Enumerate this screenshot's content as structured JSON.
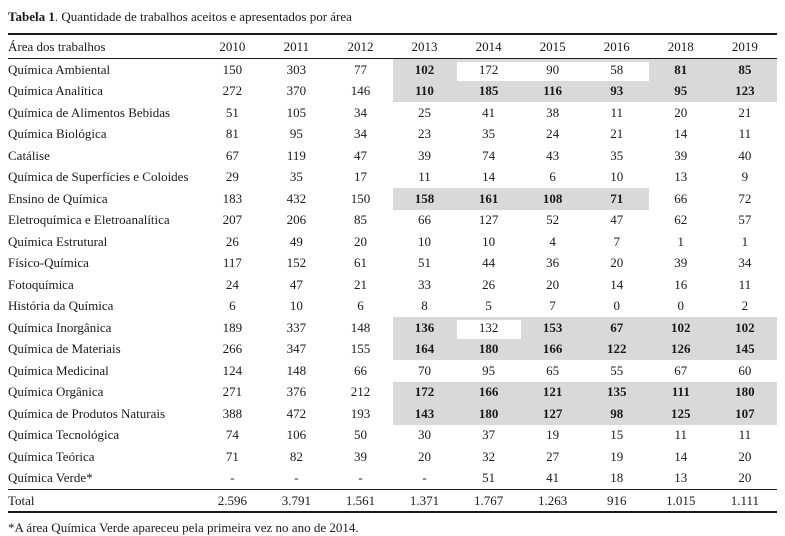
{
  "title": {
    "label": "Tabela 1",
    "rest": ". Quantidade de trabalhos aceitos e apresentados por área"
  },
  "highlight_color": "#d9d9d9",
  "table": {
    "area_header": "Área dos trabalhos",
    "year_headers": [
      "2010",
      "2011",
      "2012",
      "2013",
      "2014",
      "2015",
      "2016",
      "2018",
      "2019"
    ],
    "rows": [
      {
        "area": "Química Ambiental",
        "values": [
          "150",
          "303",
          "77",
          "102",
          "172",
          "90",
          "58",
          "81",
          "85"
        ],
        "hl": [
          3,
          7,
          8
        ],
        "cut": [
          4,
          5,
          6
        ]
      },
      {
        "area": "Química Analítica",
        "values": [
          "272",
          "370",
          "146",
          "110",
          "185",
          "116",
          "93",
          "95",
          "123"
        ],
        "hl": [
          3,
          4,
          5,
          6,
          7,
          8
        ],
        "cut": []
      },
      {
        "area": "Química de Alimentos Bebidas",
        "values": [
          "51",
          "105",
          "34",
          "25",
          "41",
          "38",
          "11",
          "20",
          "21"
        ],
        "hl": [],
        "cut": []
      },
      {
        "area": "Química Biológica",
        "values": [
          "81",
          "95",
          "34",
          "23",
          "35",
          "24",
          "21",
          "14",
          "11"
        ],
        "hl": [],
        "cut": []
      },
      {
        "area": "Catálise",
        "values": [
          "67",
          "119",
          "47",
          "39",
          "74",
          "43",
          "35",
          "39",
          "40"
        ],
        "hl": [],
        "cut": []
      },
      {
        "area": "Química de Superfícies e Coloides",
        "values": [
          "29",
          "35",
          "17",
          "11",
          "14",
          "6",
          "10",
          "13",
          "9"
        ],
        "hl": [],
        "cut": []
      },
      {
        "area": "Ensino de Química",
        "values": [
          "183",
          "432",
          "150",
          "158",
          "161",
          "108",
          "71",
          "66",
          "72"
        ],
        "hl": [
          3,
          4,
          5,
          6
        ],
        "cut": []
      },
      {
        "area": "Eletroquímica e Eletroanalítica",
        "values": [
          "207",
          "206",
          "85",
          "66",
          "127",
          "52",
          "47",
          "62",
          "57"
        ],
        "hl": [],
        "cut": []
      },
      {
        "area": "Química Estrutural",
        "values": [
          "26",
          "49",
          "20",
          "10",
          "10",
          "4",
          "7",
          "1",
          "1"
        ],
        "hl": [],
        "cut": []
      },
      {
        "area": "Físico-Química",
        "values": [
          "117",
          "152",
          "61",
          "51",
          "44",
          "36",
          "20",
          "39",
          "34"
        ],
        "hl": [],
        "cut": []
      },
      {
        "area": "Fotoquímica",
        "values": [
          "24",
          "47",
          "21",
          "33",
          "26",
          "20",
          "14",
          "16",
          "11"
        ],
        "hl": [],
        "cut": []
      },
      {
        "area": "História da Química",
        "values": [
          "6",
          "10",
          "6",
          "8",
          "5",
          "7",
          "0",
          "0",
          "2"
        ],
        "hl": [],
        "cut": []
      },
      {
        "area": "Química Inorgânica",
        "values": [
          "189",
          "337",
          "148",
          "136",
          "132",
          "153",
          "67",
          "102",
          "102"
        ],
        "hl": [
          3,
          5,
          6,
          7,
          8
        ],
        "cut": [
          4
        ]
      },
      {
        "area": "Química de Materiais",
        "values": [
          "266",
          "347",
          "155",
          "164",
          "180",
          "166",
          "122",
          "126",
          "145"
        ],
        "hl": [
          3,
          4,
          5,
          6,
          7,
          8
        ],
        "cut": []
      },
      {
        "area": "Química Medicinal",
        "values": [
          "124",
          "148",
          "66",
          "70",
          "95",
          "65",
          "55",
          "67",
          "60"
        ],
        "hl": [],
        "cut": []
      },
      {
        "area": "Química Orgânica",
        "values": [
          "271",
          "376",
          "212",
          "172",
          "166",
          "121",
          "135",
          "111",
          "180"
        ],
        "hl": [
          3,
          4,
          5,
          6,
          7,
          8
        ],
        "cut": []
      },
      {
        "area": "Química de Produtos Naturais",
        "values": [
          "388",
          "472",
          "193",
          "143",
          "180",
          "127",
          "98",
          "125",
          "107"
        ],
        "hl": [
          3,
          4,
          5,
          6,
          7,
          8
        ],
        "cut": []
      },
      {
        "area": "Química Tecnológica",
        "values": [
          "74",
          "106",
          "50",
          "30",
          "37",
          "19",
          "15",
          "11",
          "11"
        ],
        "hl": [],
        "cut": []
      },
      {
        "area": "Química Teórica",
        "values": [
          "71",
          "82",
          "39",
          "20",
          "32",
          "27",
          "19",
          "14",
          "20"
        ],
        "hl": [],
        "cut": []
      },
      {
        "area": "Química Verde*",
        "values": [
          "-",
          "-",
          "-",
          "-",
          "51",
          "41",
          "18",
          "13",
          "20"
        ],
        "hl": [],
        "cut": []
      }
    ],
    "total": {
      "label": "Total",
      "values": [
        "2.596",
        "3.791",
        "1.561",
        "1.371",
        "1.767",
        "1.263",
        "916",
        "1.015",
        "1.111"
      ]
    }
  },
  "footnote": "*A área Química Verde apareceu pela primeira vez no ano de 2014."
}
